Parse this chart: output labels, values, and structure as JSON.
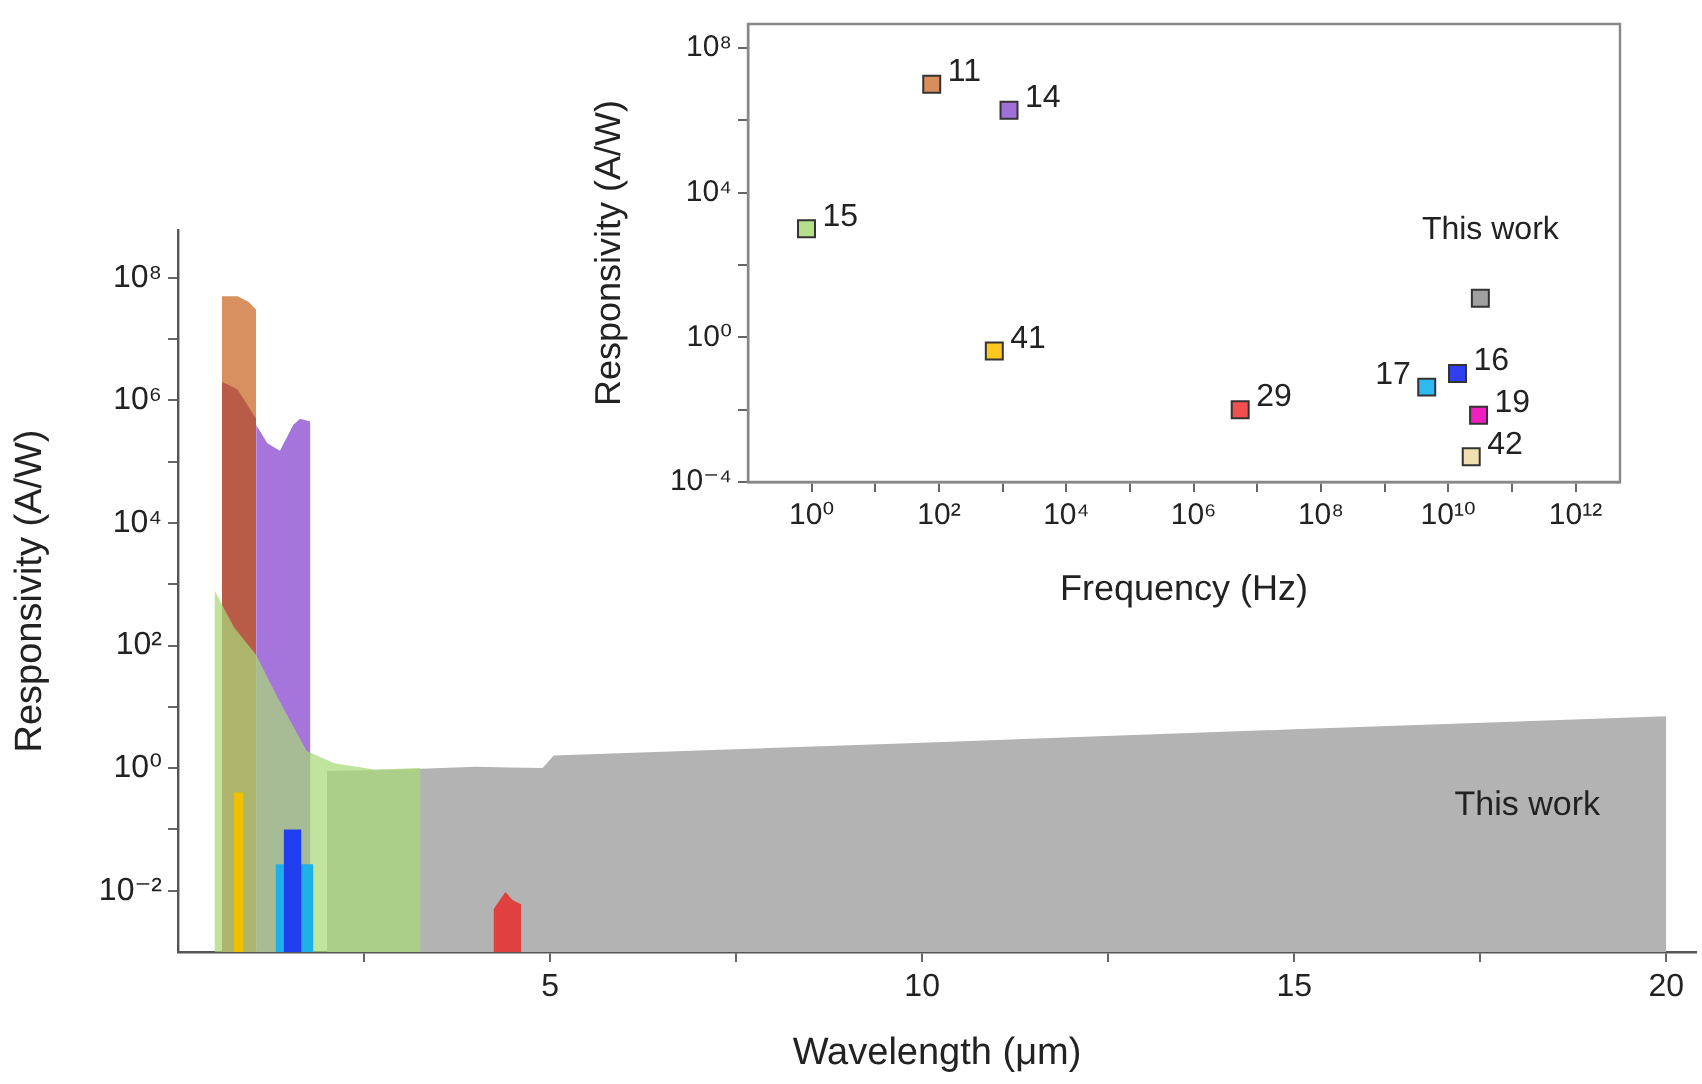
{
  "chart_data": [
    {
      "type": "area",
      "xlabel": "Wavelength (μm)",
      "ylabel": "Responsivity (A/W)",
      "log": "y",
      "grid": false,
      "legend": false,
      "xlim": [
        0,
        20.4
      ],
      "ylim": [
        0.001,
        600000000
      ],
      "xticks": [
        {
          "value": 2.5,
          "label": null
        },
        5,
        {
          "value": 7.5,
          "label": null
        },
        10,
        {
          "value": 12.5,
          "label": null
        },
        15,
        {
          "value": 17.5,
          "label": null
        },
        20
      ],
      "yticks": [
        {
          "value": 0.01,
          "label": "10⁻²"
        },
        {
          "value": 0.1,
          "label": null
        },
        {
          "value": 1,
          "label": "10⁰"
        },
        {
          "value": 10,
          "label": null
        },
        {
          "value": 100,
          "label": "10²"
        },
        {
          "value": 1000,
          "label": null
        },
        {
          "value": 10000,
          "label": "10⁴"
        },
        {
          "value": 100000,
          "label": null
        },
        {
          "value": 1000000,
          "label": "10⁶"
        },
        {
          "value": 10000000,
          "label": null
        },
        {
          "value": 100000000,
          "label": "10⁸"
        }
      ],
      "series": [
        {
          "color": "#b3b3b3",
          "x": [
            2,
            3,
            4,
            4.9,
            5.05,
            10,
            15,
            20
          ],
          "values": [
            0.9,
            0.95,
            1.05,
            1.0,
            1.6,
            2.6,
            4.3,
            7
          ]
        },
        {
          "color": "#d99060",
          "x": [
            0.59,
            0.8,
            0.95,
            1.05
          ],
          "values": [
            50000000,
            50000000,
            40000000,
            30000000
          ]
        },
        {
          "color": "#b85c48",
          "x": [
            0.59,
            0.8,
            1.05
          ],
          "values": [
            2000000,
            1500000,
            500000
          ]
        },
        {
          "color": "#a575dc",
          "x": [
            1.05,
            1.2,
            1.37,
            1.55,
            1.64,
            1.78
          ],
          "values": [
            400000,
            200000,
            150000,
            400000,
            500000,
            450000
          ]
        },
        {
          "color": "#a8d878",
          "x": [
            0.49,
            0.75,
            1.05,
            1.37,
            1.73,
            2.1,
            2.64,
            3.26
          ],
          "values": [
            800,
            200,
            70,
            12,
            1.9,
            1.2,
            0.95,
            1.0
          ]
        },
        {
          "color": "#f0c000",
          "x": [
            0.75,
            0.88
          ],
          "values": [
            0.4,
            0.4
          ]
        },
        {
          "color": "#20b0e8",
          "x": [
            1.31,
            1.82
          ],
          "values": [
            0.027,
            0.027
          ]
        },
        {
          "color": "#2040f0",
          "x": [
            1.42,
            1.66
          ],
          "values": [
            0.1,
            0.1
          ]
        },
        {
          "color": "#e04040",
          "x": [
            4.24,
            4.4,
            4.5,
            4.61
          ],
          "values": [
            0.005,
            0.0095,
            0.007,
            0.006
          ]
        }
      ],
      "annotations": [
        "This work"
      ]
    },
    {
      "type": "scatter",
      "xlabel": "Frequency (Hz)",
      "ylabel": "Responsivity (A/W)",
      "log": "xy",
      "grid": false,
      "legend": false,
      "marker": "square",
      "xlim": [
        0.1,
        5000000000000
      ],
      "ylim": [
        0.0001,
        460000000
      ],
      "xticks": [
        {
          "value": 1,
          "label": "10⁰"
        },
        {
          "value": 10,
          "label": null
        },
        {
          "value": 100,
          "label": "10²"
        },
        {
          "value": 1000,
          "label": null
        },
        {
          "value": 10000,
          "label": "10⁴"
        },
        {
          "value": 100000,
          "label": null
        },
        {
          "value": 1000000,
          "label": "10⁶"
        },
        {
          "value": 10000000,
          "label": null
        },
        {
          "value": 100000000,
          "label": "10⁸"
        },
        {
          "value": 1000000000,
          "label": null
        },
        {
          "value": 10000000000,
          "label": "10¹⁰"
        },
        {
          "value": 100000000000,
          "label": null
        },
        {
          "value": 1000000000000,
          "label": "10¹²"
        }
      ],
      "yticks": [
        {
          "value": 0.0001,
          "label": "10⁻⁴"
        },
        {
          "value": 0.01,
          "label": null
        },
        {
          "value": 1,
          "label": "10⁰"
        },
        {
          "value": 100,
          "label": null
        },
        {
          "value": 10000,
          "label": "10⁴"
        },
        {
          "value": 1000000,
          "label": null
        },
        {
          "value": 100000000,
          "label": "10⁸"
        }
      ],
      "series": [
        {
          "name": "11",
          "color": "#d98c5c",
          "x": [
            77
          ],
          "values": [
            10000000
          ]
        },
        {
          "name": "14",
          "color": "#a070d8",
          "x": [
            1260
          ],
          "values": [
            1900000
          ]
        },
        {
          "name": "15",
          "color": "#b5e08a",
          "x": [
            0.83
          ],
          "values": [
            1000
          ]
        },
        {
          "name": "41",
          "color": "#ffc820",
          "x": [
            740
          ],
          "values": [
            0.42
          ]
        },
        {
          "name": "29",
          "color": "#f05050",
          "x": [
            5400000
          ],
          "values": [
            0.01
          ]
        },
        {
          "name": "17",
          "color": "#30b8f0",
          "x": [
            4600000000
          ],
          "values": [
            0.042
          ]
        },
        {
          "name": "16",
          "color": "#3040f0",
          "x": [
            14000000000
          ],
          "values": [
            0.1
          ]
        },
        {
          "name": "19",
          "color": "#f020c0",
          "x": [
            30000000000
          ],
          "values": [
            0.007
          ]
        },
        {
          "name": "42",
          "color": "#f0e0b0",
          "x": [
            23000000000
          ],
          "values": [
            0.0005
          ]
        },
        {
          "name": "This work",
          "color": "#a0a0a0",
          "x": [
            32000000000
          ],
          "values": [
            12
          ]
        }
      ]
    }
  ]
}
